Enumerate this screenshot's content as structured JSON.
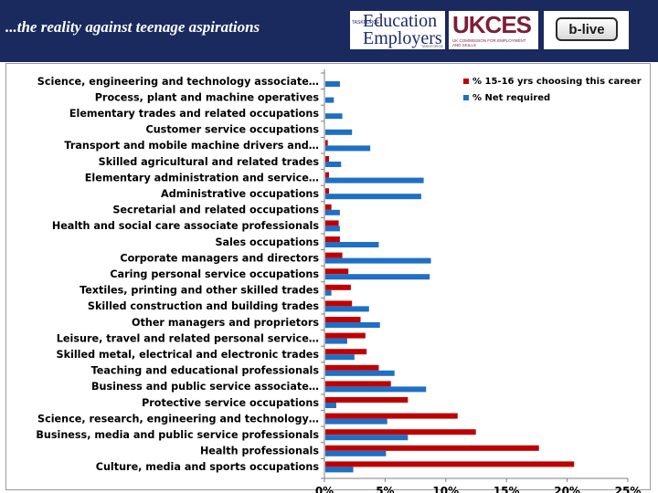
{
  "header": {
    "title": "...the reality against teenage aspirations",
    "background": "#1a2a5e",
    "logos": {
      "education_employers": {
        "line1": "Education",
        "line2": "Employers",
        "mark": "TASKFORCE",
        "sub": "TASKFORCE"
      },
      "ukces": {
        "mark": "UKCES",
        "sub": "UK COMMISSION FOR EMPLOYMENT AND SKILLS"
      },
      "blive": {
        "label": "b-live"
      }
    }
  },
  "chart_data": {
    "type": "bar",
    "orientation": "horizontal",
    "xlim": [
      0,
      0.25
    ],
    "ticks": [
      "0%",
      "5%",
      "10%",
      "15%",
      "20%",
      "25%"
    ],
    "tick_values": [
      0,
      0.05,
      0.1,
      0.15,
      0.2,
      0.25
    ],
    "legend_position": "top-right",
    "grid": false,
    "categories": [
      "Science, engineering and technology associate…",
      "Process, plant and machine operatives",
      "Elementary trades and related occupations",
      "Customer service occupations",
      "Transport and mobile machine drivers and…",
      "Skilled agricultural and related trades",
      "Elementary administration and service…",
      "Administrative occupations",
      "Secretarial and related occupations",
      "Health and social care associate professionals",
      "Sales occupations",
      "Corporate managers and directors",
      "Caring personal service occupations",
      "Textiles, printing and other skilled trades",
      "Skilled construction and building trades",
      "Other managers and proprietors",
      "Leisure, travel and related personal service…",
      "Skilled metal, electrical and electronic trades",
      "Teaching and educational professionals",
      "Business and public service associate…",
      "Protective service occupations",
      "Science, research, engineering and technology…",
      "Business, media and public service professionals",
      "Health professionals",
      "Culture, media and sports occupations"
    ],
    "series": [
      {
        "name": "% 15-16 yrs choosing this career",
        "color": "#c00000",
        "values": [
          0.0,
          0.0,
          0.0,
          0.0,
          0.002,
          0.003,
          0.003,
          0.003,
          0.005,
          0.011,
          0.012,
          0.014,
          0.019,
          0.021,
          0.022,
          0.029,
          0.033,
          0.034,
          0.044,
          0.054,
          0.068,
          0.109,
          0.124,
          0.176,
          0.205
        ]
      },
      {
        "name": "% Net required",
        "color": "#1f6fc5",
        "values": [
          0.012,
          0.007,
          0.014,
          0.022,
          0.037,
          0.013,
          0.081,
          0.079,
          0.012,
          0.012,
          0.044,
          0.087,
          0.086,
          0.005,
          0.036,
          0.045,
          0.018,
          0.024,
          0.057,
          0.083,
          0.009,
          0.051,
          0.068,
          0.05,
          0.023
        ]
      }
    ]
  }
}
